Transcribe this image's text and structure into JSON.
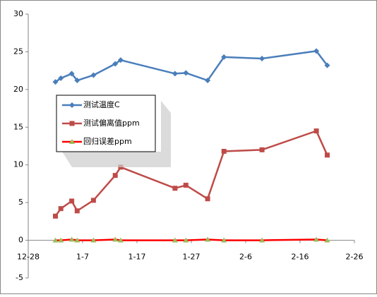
{
  "chart_data": {
    "type": "line",
    "x": [
      5,
      6,
      8,
      9,
      12,
      16,
      17,
      27,
      29,
      33,
      36,
      43,
      53,
      55
    ],
    "xlim": [
      0,
      60
    ],
    "xticks": [
      {
        "value": 0,
        "label": "12-28"
      },
      {
        "value": 10,
        "label": "1-7"
      },
      {
        "value": 20,
        "label": "1-17"
      },
      {
        "value": 30,
        "label": "1-27"
      },
      {
        "value": 40,
        "label": "2-6"
      },
      {
        "value": 50,
        "label": "2-16"
      },
      {
        "value": 60,
        "label": "2-26"
      }
    ],
    "ylim": [
      -5,
      30
    ],
    "yticks": [
      -5,
      0,
      5,
      10,
      15,
      20,
      25,
      30
    ],
    "grid": false,
    "legend": "left",
    "series": [
      {
        "name": "测试温度C",
        "color": "#4a7ebb",
        "marker": "diamond",
        "values": [
          21.0,
          21.5,
          22.1,
          21.2,
          21.9,
          23.4,
          23.9,
          22.1,
          22.2,
          21.2,
          24.3,
          24.1,
          25.1,
          23.2
        ]
      },
      {
        "name": "测试偏离值ppm",
        "color": "#be4b48",
        "marker": "square",
        "values": [
          3.2,
          4.2,
          5.2,
          3.9,
          5.3,
          8.6,
          9.7,
          6.9,
          7.3,
          5.5,
          11.8,
          12.0,
          14.5,
          11.3
        ]
      },
      {
        "name": "回归误差ppm",
        "color": "#ff0000",
        "marker": "triangle",
        "markerColor": "#9bbb59",
        "values": [
          0,
          0,
          0.1,
          0,
          0,
          0.1,
          0,
          0,
          0,
          0.1,
          0,
          0,
          0.1,
          0
        ]
      }
    ]
  }
}
